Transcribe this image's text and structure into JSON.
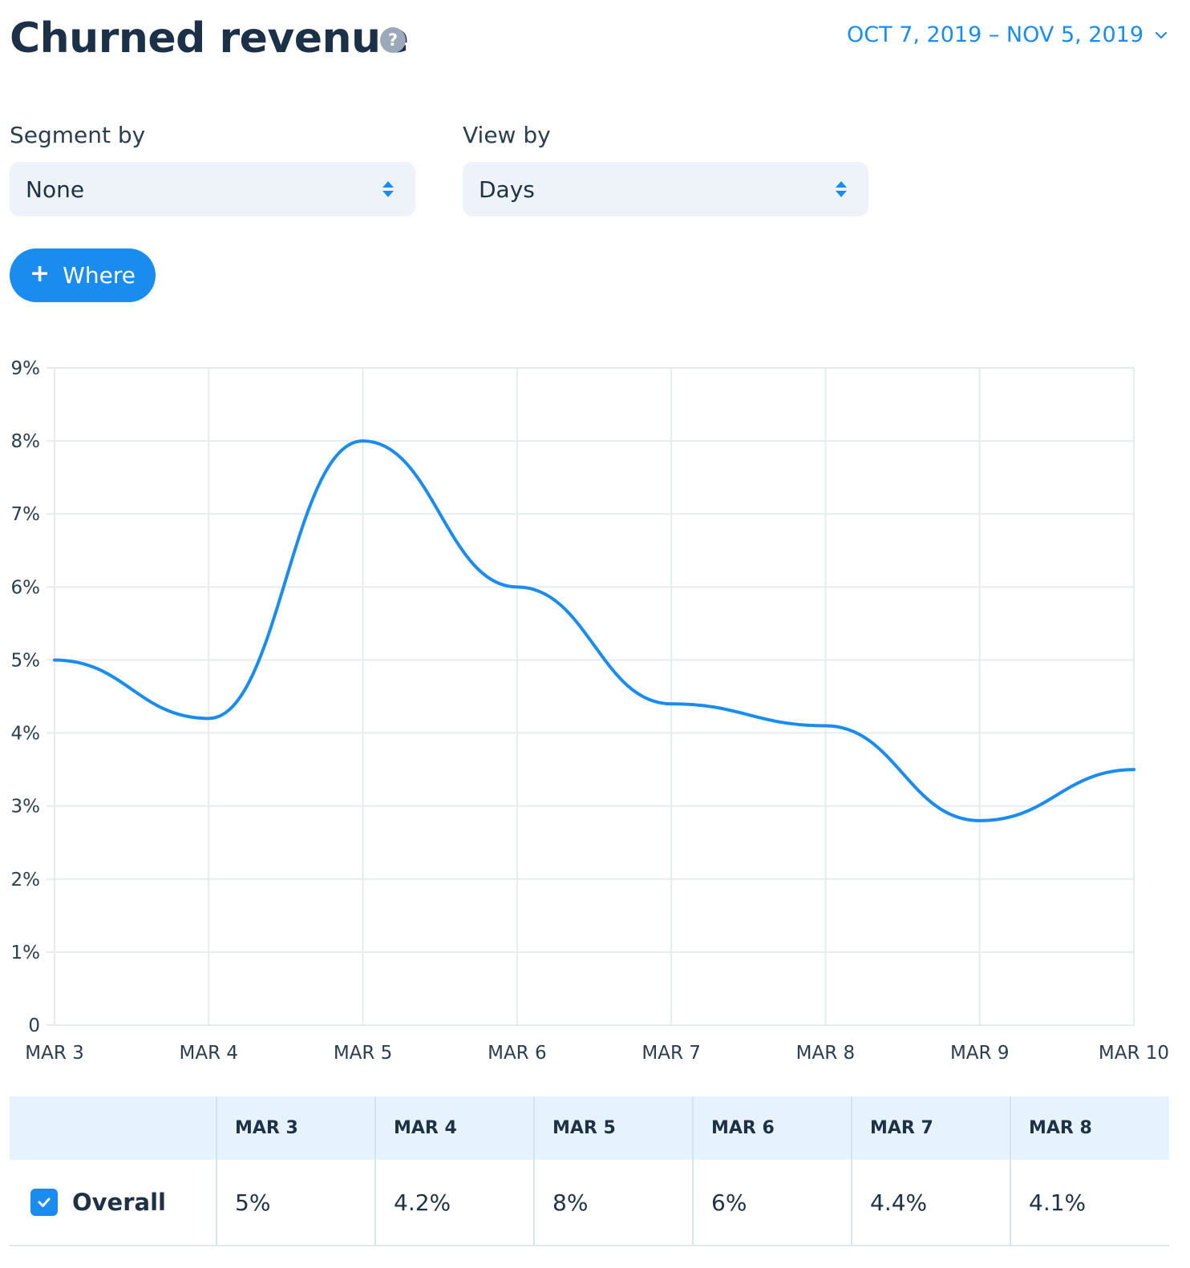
{
  "header": {
    "title": "Churned revenue",
    "help_glyph": "?",
    "date_range": "OCT 7, 2019 – NOV 5, 2019"
  },
  "filters": {
    "segment": {
      "label": "Segment by",
      "value": "None"
    },
    "view": {
      "label": "View by",
      "value": "Days"
    },
    "where_button": {
      "icon": "+",
      "label": "Where"
    }
  },
  "colors": {
    "accent": "#1a8cf0",
    "title": "#1c3047",
    "select_bg": "#eef3f9",
    "table_header_bg": "#e6f2fd"
  },
  "chart_data": {
    "type": "line",
    "title": "",
    "xlabel": "",
    "ylabel": "",
    "ylim": [
      0,
      9
    ],
    "y_ticks": [
      "0",
      "1%",
      "2%",
      "3%",
      "4%",
      "5%",
      "6%",
      "7%",
      "8%",
      "9%"
    ],
    "categories": [
      "MAR 3",
      "MAR 4",
      "MAR 5",
      "MAR 6",
      "MAR 7",
      "MAR 8",
      "MAR 9",
      "MAR 10"
    ],
    "series": [
      {
        "values": [
          5,
          4.2,
          8,
          6,
          4.4,
          4.1,
          2.8,
          3.5
        ],
        "color": "#1a8cf0"
      }
    ],
    "grid": true,
    "legend": "none",
    "smooth": true
  },
  "table": {
    "columns": [
      "MAR 3",
      "MAR 4",
      "MAR 5",
      "MAR 6",
      "MAR 7",
      "MAR 8"
    ],
    "rows": [
      {
        "label": "Overall",
        "checked": true,
        "values": [
          "5%",
          "4.2%",
          "8%",
          "6%",
          "4.4%",
          "4.1%"
        ]
      }
    ]
  }
}
